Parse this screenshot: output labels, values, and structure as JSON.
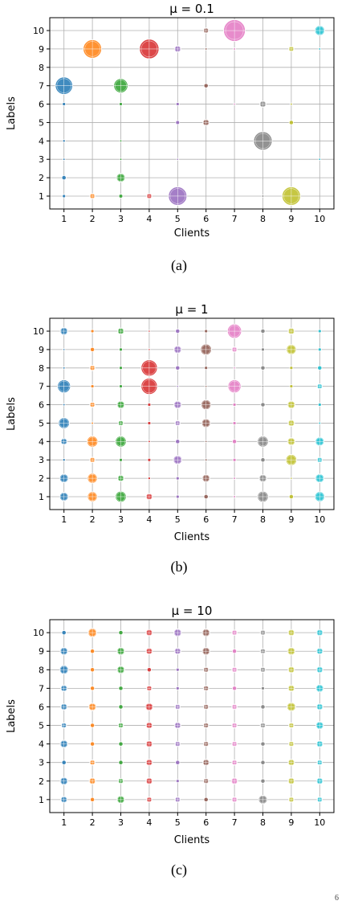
{
  "colors": [
    "#1f77b4",
    "#ff7f0e",
    "#2ca02c",
    "#d62728",
    "#9467bd",
    "#8c564b",
    "#e377c2",
    "#7f7f7f",
    "#bcbd22",
    "#17becf"
  ],
  "page_number": "6",
  "chart_data": [
    {
      "type": "scatter",
      "title": "μ = 0.1",
      "caption": "(a)",
      "xlabel": "Clients",
      "ylabel": "Labels",
      "x": [
        1,
        2,
        3,
        4,
        5,
        6,
        7,
        8,
        9,
        10
      ],
      "y": [
        1,
        2,
        3,
        4,
        5,
        6,
        7,
        8,
        9,
        10
      ],
      "xlim": [
        0.5,
        10.5
      ],
      "ylim": [
        0.3,
        10.7
      ],
      "grid": true,
      "point_note": "sizes[client][label] relative sample counts",
      "sizes": [
        [
          1.5,
          2.0,
          1.0,
          1.2,
          0,
          1.5,
          8.0,
          0,
          0,
          0
        ],
        [
          2.5,
          0,
          0,
          0,
          0,
          0,
          0,
          0,
          8.5,
          0
        ],
        [
          1.8,
          4.0,
          1.0,
          1.0,
          0,
          1.5,
          6.5,
          0,
          0,
          0
        ],
        [
          2.5,
          0,
          0,
          0,
          0,
          0,
          0,
          0,
          9.0,
          0
        ],
        [
          8.5,
          0,
          0.5,
          0,
          1.8,
          1.5,
          0,
          0,
          3.0,
          0
        ],
        [
          0,
          0,
          0,
          0,
          3.0,
          0,
          2.0,
          0,
          1.0,
          2.5
        ],
        [
          0,
          0,
          0,
          0,
          0,
          0.5,
          0,
          0,
          1.0,
          10.0
        ],
        [
          1.0,
          0,
          0,
          8.5,
          0,
          3.0,
          0,
          0,
          0,
          0
        ],
        [
          8.5,
          0,
          0,
          0,
          2.0,
          1.0,
          0,
          0,
          2.5,
          0
        ],
        [
          0,
          0,
          1.0,
          0,
          0,
          0,
          0,
          0,
          1.0,
          4.5
        ]
      ]
    },
    {
      "type": "scatter",
      "title": "μ = 1",
      "caption": "(b)",
      "xlabel": "Clients",
      "ylabel": "Labels",
      "x": [
        1,
        2,
        3,
        4,
        5,
        6,
        7,
        8,
        9,
        10
      ],
      "y": [
        1,
        2,
        3,
        4,
        5,
        6,
        7,
        8,
        9,
        10
      ],
      "xlim": [
        0.5,
        10.5
      ],
      "ylim": [
        0.3,
        10.7
      ],
      "grid": true,
      "sizes": [
        [
          4.0,
          4.0,
          1.2,
          3.0,
          5.0,
          1.0,
          6.0,
          1.0,
          0.5,
          3.5
        ],
        [
          4.5,
          4.5,
          2.5,
          5.0,
          1.0,
          2.5,
          1.5,
          2.5,
          2.0,
          1.5
        ],
        [
          5.0,
          3.0,
          1.5,
          5.0,
          2.5,
          3.5,
          1.5,
          1.5,
          1.5,
          3.0
        ],
        [
          3.0,
          1.2,
          1.5,
          1.0,
          1.5,
          1.5,
          7.5,
          7.5,
          0.5,
          0.5
        ],
        [
          1.5,
          1.5,
          4.0,
          2.0,
          2.5,
          3.5,
          0.5,
          2.0,
          3.5,
          2.0
        ],
        [
          2.0,
          3.5,
          1.0,
          0.5,
          4.0,
          4.5,
          0.5,
          1.5,
          5.0,
          1.5
        ],
        [
          1.0,
          1.0,
          1.5,
          2.0,
          1.5,
          1.5,
          6.0,
          0.5,
          2.5,
          6.5
        ],
        [
          5.0,
          3.5,
          2.0,
          5.0,
          1.0,
          2.0,
          1.0,
          2.0,
          1.5,
          2.0
        ],
        [
          2.0,
          0.5,
          5.0,
          3.5,
          3.0,
          3.5,
          1.5,
          1.5,
          4.5,
          3.0
        ],
        [
          4.5,
          4.0,
          2.5,
          4.0,
          1.0,
          1.5,
          2.5,
          2.0,
          1.5,
          1.5
        ]
      ]
    },
    {
      "type": "scatter",
      "title": "μ = 10",
      "caption": "(c)",
      "xlabel": "Clients",
      "ylabel": "Labels",
      "x": [
        1,
        2,
        3,
        4,
        5,
        6,
        7,
        8,
        9,
        10
      ],
      "y": [
        1,
        2,
        3,
        4,
        5,
        6,
        7,
        8,
        9,
        10
      ],
      "xlim": [
        0.5,
        10.5
      ],
      "ylim": [
        0.3,
        10.7
      ],
      "grid": true,
      "sizes": [
        [
          3.0,
          3.5,
          2.0,
          3.5,
          2.5,
          3.0,
          3.0,
          4.0,
          3.5,
          2.0
        ],
        [
          2.0,
          3.0,
          2.5,
          2.0,
          2.0,
          3.5,
          2.0,
          2.0,
          2.0,
          4.0
        ],
        [
          3.5,
          2.5,
          2.0,
          2.0,
          2.5,
          2.0,
          2.0,
          3.5,
          3.5,
          2.0
        ],
        [
          2.5,
          3.0,
          3.0,
          3.0,
          3.0,
          3.5,
          2.5,
          2.0,
          3.0,
          3.0
        ],
        [
          2.5,
          1.5,
          2.0,
          2.5,
          3.0,
          2.5,
          1.5,
          1.5,
          3.0,
          3.5
        ],
        [
          2.0,
          2.5,
          3.0,
          2.5,
          2.5,
          2.5,
          2.5,
          2.5,
          3.5,
          3.5
        ],
        [
          2.5,
          3.0,
          2.5,
          2.5,
          2.5,
          2.5,
          2.0,
          2.5,
          2.0,
          2.5
        ],
        [
          4.0,
          2.0,
          2.0,
          2.0,
          2.5,
          2.0,
          1.5,
          2.5,
          2.5,
          2.5
        ],
        [
          2.5,
          3.0,
          3.0,
          2.5,
          2.5,
          4.0,
          3.0,
          3.0,
          3.5,
          3.0
        ],
        [
          2.5,
          3.0,
          2.5,
          3.0,
          3.5,
          3.0,
          3.5,
          3.0,
          3.0,
          3.0
        ]
      ]
    }
  ]
}
